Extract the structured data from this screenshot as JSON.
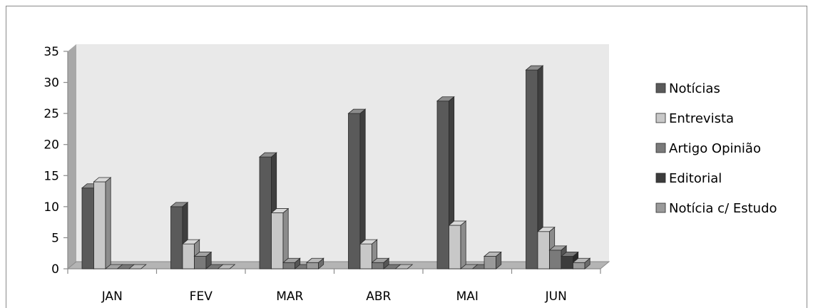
{
  "chart_data": {
    "type": "bar",
    "title": "",
    "xlabel": "",
    "ylabel": "",
    "categories": [
      "JAN",
      "FEV",
      "MAR",
      "ABR",
      "MAI",
      "JUN"
    ],
    "ylim": [
      0,
      35
    ],
    "yticks": [
      "0",
      "5",
      "10",
      "15",
      "20",
      "25",
      "30",
      "35"
    ],
    "grid": false,
    "legend_position": "right",
    "series": [
      {
        "name": "Notícias",
        "color": "#5a5a5a",
        "values": [
          13,
          10,
          18,
          25,
          27,
          32
        ]
      },
      {
        "name": "Entrevista",
        "color": "#c8c8c8",
        "values": [
          14,
          4,
          9,
          4,
          7,
          6
        ]
      },
      {
        "name": "Artigo Opinião",
        "color": "#7a7a7a",
        "values": [
          0,
          2,
          1,
          1,
          0,
          3
        ]
      },
      {
        "name": "Editorial",
        "color": "#3c3c3c",
        "values": [
          0,
          0,
          0,
          0,
          0,
          2
        ]
      },
      {
        "name": "Notícia c/ Estudo",
        "color": "#9a9a9a",
        "values": [
          0,
          0,
          1,
          0,
          2,
          1
        ]
      }
    ]
  }
}
